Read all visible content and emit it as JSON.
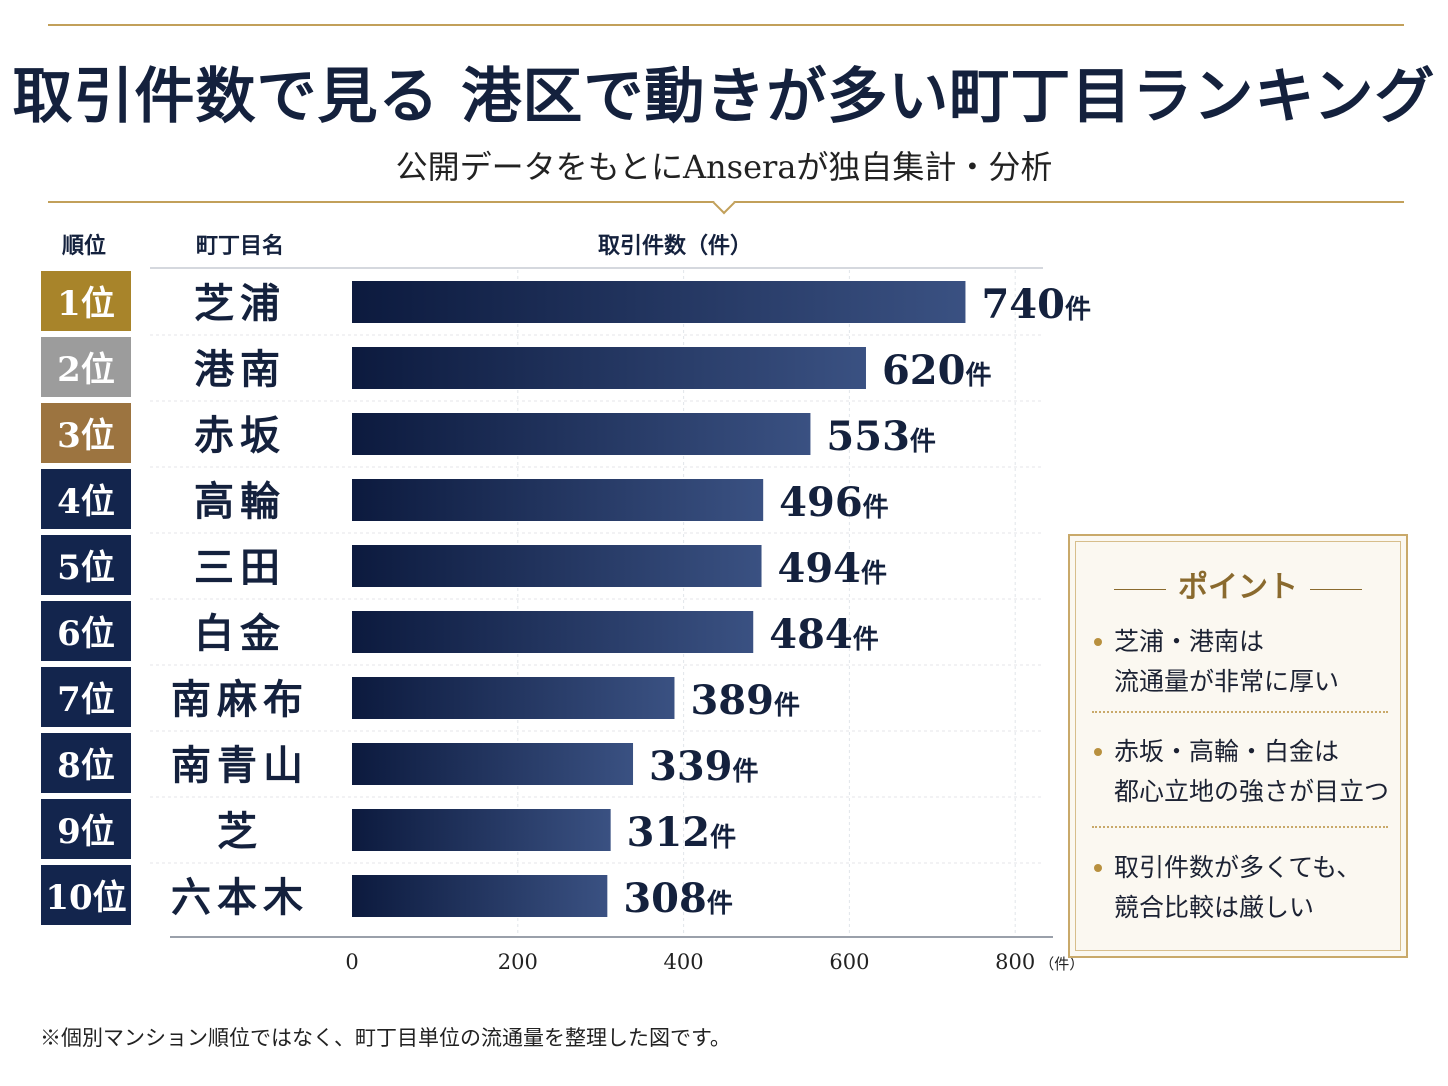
{
  "title": "取引件数で見る 港区で動きが多い町丁目ランキング",
  "subtitle": "公開データをもとにAnseraが独自集計・分析",
  "chart_data": {
    "type": "bar",
    "orientation": "horizontal",
    "header_rank": "順位",
    "header_name": "町丁目名",
    "header_value": "取引件数（件）",
    "rank_labels": [
      "1位",
      "2位",
      "3位",
      "4位",
      "5位",
      "6位",
      "7位",
      "8位",
      "9位",
      "10位"
    ],
    "categories": [
      "芝浦",
      "港南",
      "赤坂",
      "高輪",
      "三田",
      "白金",
      "南麻布",
      "南青山",
      "芝",
      "六本木"
    ],
    "values": [
      740,
      620,
      553,
      496,
      494,
      484,
      389,
      339,
      312,
      308
    ],
    "value_suffix": "件",
    "xlim": [
      0,
      800
    ],
    "xticks": [
      "0",
      "200",
      "400",
      "600",
      "800"
    ],
    "xunit": "（件）",
    "grid": true,
    "colors": {
      "bar_start": "#0c1a3e",
      "bar_end": "#3a5182",
      "rank_gold": "#a8842a",
      "rank_silver": "#9c9c9c",
      "rank_bronze": "#9c7440",
      "rank_navy": "#13254d"
    }
  },
  "points": {
    "title": "ポイント",
    "items": [
      [
        "芝浦・港南は",
        "流通量が非常に厚い"
      ],
      [
        "赤坂・高輪・白金は",
        "都心立地の強さが目立つ"
      ],
      [
        "取引件数が多くても、",
        "競合比較は厳しい"
      ]
    ]
  },
  "footnote": "※個別マンション順位ではなく、町丁目単位の流通量を整理した図です。"
}
